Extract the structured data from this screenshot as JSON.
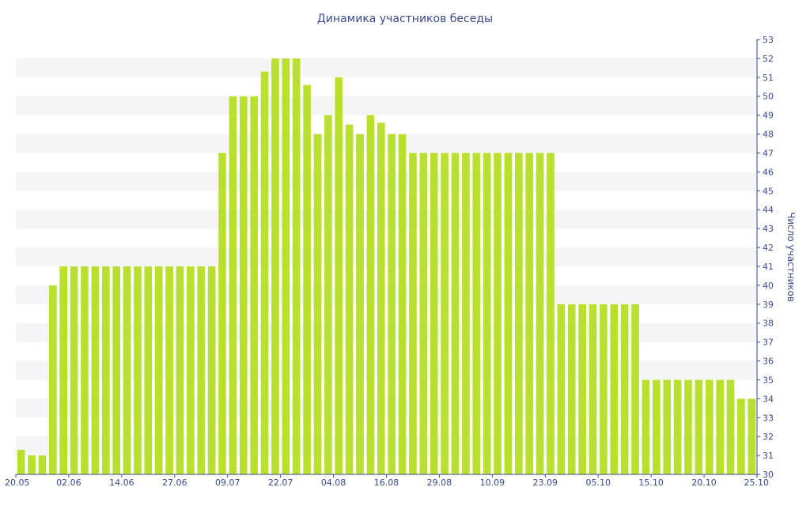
{
  "chart_data": {
    "type": "bar",
    "title": "Динамика участников беседы",
    "xlabel": "",
    "ylabel": "Число участников",
    "ylim": [
      30,
      53
    ],
    "y_axis_side": "right",
    "grid": "alternating horizontal bands",
    "bar_color": "#b9e02f",
    "band_color": "#f5f5f5",
    "text_color": "#3a4a8c",
    "x_tick_labels": [
      "20.05",
      "02.06",
      "14.06",
      "27.06",
      "09.07",
      "22.07",
      "04.08",
      "16.08",
      "29.08",
      "10.09",
      "23.09",
      "05.10",
      "15.10",
      "20.10",
      "25.10"
    ],
    "y_tick_labels": [
      30,
      31,
      32,
      33,
      34,
      35,
      36,
      37,
      38,
      39,
      40,
      41,
      42,
      43,
      44,
      45,
      46,
      47,
      48,
      49,
      50,
      51,
      52,
      53
    ],
    "values": [
      31.3,
      31,
      31,
      40,
      41,
      41,
      41,
      41,
      41,
      41,
      41,
      41,
      41,
      41,
      41,
      41,
      41,
      41,
      41,
      47,
      50,
      50,
      50,
      51.3,
      52,
      52,
      52,
      50.6,
      48,
      49,
      51,
      48.5,
      48,
      49,
      48.6,
      48,
      48,
      47,
      47,
      47,
      47,
      47,
      47,
      47,
      47,
      47,
      47,
      47,
      47,
      47,
      47,
      39,
      39,
      39,
      39,
      39,
      39,
      39,
      39,
      35,
      35,
      35,
      35,
      35,
      35,
      35,
      35,
      35,
      34,
      34
    ]
  }
}
